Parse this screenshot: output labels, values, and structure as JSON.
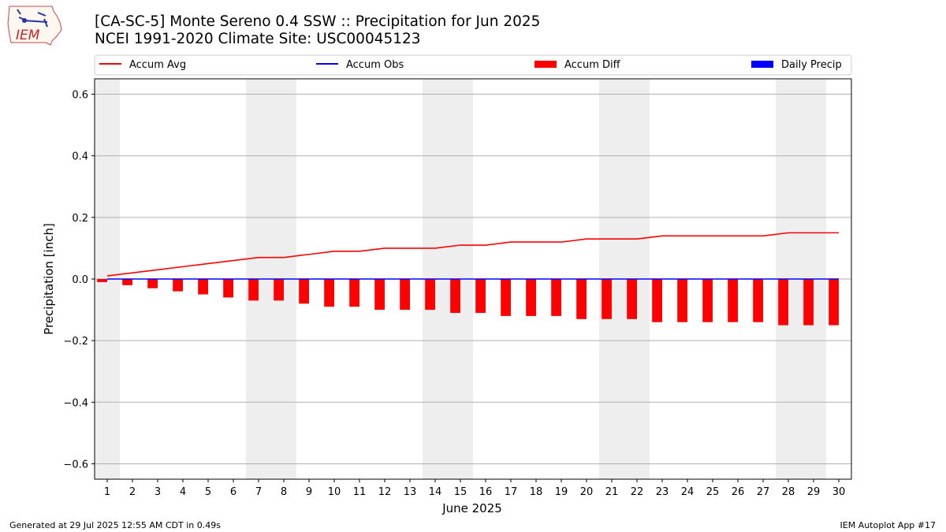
{
  "title_line1": "[CA-SC-5] Monte Sereno 0.4 SSW :: Precipitation for Jun 2025",
  "title_line2": "NCEI 1991-2020 Climate Site: USC00045123",
  "footer_left": "Generated at 29 Jul 2025 12:55 AM CDT in 0.49s",
  "footer_right": "IEM Autoplot App #17",
  "logo_text": "IEM",
  "colors": {
    "accum_avg": "#ff0000",
    "accum_obs": "#0000ff",
    "accum_diff": "#ff0000",
    "daily_precip": "#0000ff",
    "weekend_shade": "#eeeeee",
    "grid": "#b0b0b0"
  },
  "chart_data": {
    "type": "bar",
    "xlabel": "June 2025",
    "ylabel": "Precipitation [inch]",
    "ylim": [
      -0.65,
      0.65
    ],
    "yticks": [
      -0.6,
      -0.4,
      -0.2,
      0.0,
      0.2,
      0.4,
      0.6
    ],
    "ytick_labels": [
      "−0.6",
      "−0.4",
      "−0.2",
      "0.0",
      "0.2",
      "0.4",
      "0.6"
    ],
    "xlim": [
      0.5,
      30.5
    ],
    "grid": "horizontal",
    "legend_placement": "top",
    "legend": [
      "Accum Avg",
      "Accum Obs",
      "Accum Diff",
      "Daily Precip"
    ],
    "weekend_days": [
      1,
      7,
      8,
      14,
      15,
      21,
      22,
      28,
      29
    ],
    "x": [
      1,
      2,
      3,
      4,
      5,
      6,
      7,
      8,
      9,
      10,
      11,
      12,
      13,
      14,
      15,
      16,
      17,
      18,
      19,
      20,
      21,
      22,
      23,
      24,
      25,
      26,
      27,
      28,
      29,
      30
    ],
    "series": [
      {
        "name": "Accum Avg",
        "kind": "line",
        "values": [
          0.01,
          0.02,
          0.03,
          0.04,
          0.05,
          0.06,
          0.07,
          0.07,
          0.08,
          0.09,
          0.09,
          0.1,
          0.1,
          0.1,
          0.11,
          0.11,
          0.12,
          0.12,
          0.12,
          0.13,
          0.13,
          0.13,
          0.14,
          0.14,
          0.14,
          0.14,
          0.14,
          0.15,
          0.15,
          0.15
        ]
      },
      {
        "name": "Accum Obs",
        "kind": "line",
        "values": [
          0,
          0,
          0,
          0,
          0,
          0,
          0,
          0,
          0,
          0,
          0,
          0,
          0,
          0,
          0,
          0,
          0,
          0,
          0,
          0,
          0,
          0,
          0,
          0,
          0,
          0,
          0,
          0,
          0,
          0
        ]
      },
      {
        "name": "Accum Diff",
        "kind": "bar",
        "values": [
          -0.01,
          -0.02,
          -0.03,
          -0.04,
          -0.05,
          -0.06,
          -0.07,
          -0.07,
          -0.08,
          -0.09,
          -0.09,
          -0.1,
          -0.1,
          -0.1,
          -0.11,
          -0.11,
          -0.12,
          -0.12,
          -0.12,
          -0.13,
          -0.13,
          -0.13,
          -0.14,
          -0.14,
          -0.14,
          -0.14,
          -0.14,
          -0.15,
          -0.15,
          -0.15
        ]
      },
      {
        "name": "Daily Precip",
        "kind": "bar",
        "values": [
          0,
          0,
          0,
          0,
          0,
          0,
          0,
          0,
          0,
          0,
          0,
          0,
          0,
          0,
          0,
          0,
          0,
          0,
          0,
          0,
          0,
          0,
          0,
          0,
          0,
          0,
          0,
          0,
          0,
          0
        ]
      }
    ]
  }
}
